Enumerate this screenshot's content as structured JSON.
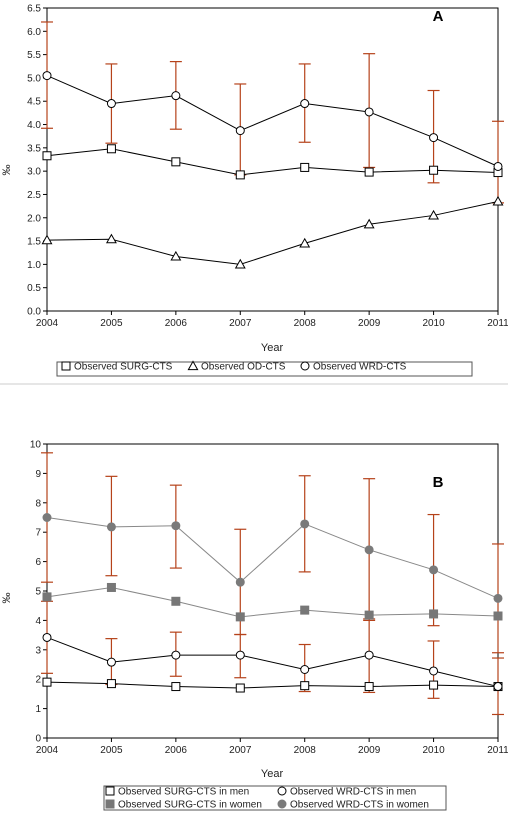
{
  "chart_data": [
    {
      "type": "line",
      "panel_label": "A",
      "xlabel": "Year",
      "ylabel": "‰",
      "x": [
        2004,
        2005,
        2006,
        2007,
        2008,
        2009,
        2010,
        2011
      ],
      "xlim": [
        2004,
        2011
      ],
      "ylim": [
        0,
        6.5
      ],
      "yticks": [
        "0.0",
        "0.5",
        "1.0",
        "1.5",
        "2.0",
        "2.5",
        "3.0",
        "3.5",
        "4.0",
        "4.5",
        "5.0",
        "5.5",
        "6.0",
        "6.5"
      ],
      "grid": false,
      "legend_position": "bottom",
      "series": [
        {
          "name": "Observed SURG-CTS",
          "marker": "square-open",
          "line_color": "#000000",
          "values": [
            3.33,
            3.48,
            3.2,
            2.92,
            3.08,
            2.98,
            3.02,
            2.97
          ]
        },
        {
          "name": "Observed OD-CTS",
          "marker": "triangle-open",
          "line_color": "#000000",
          "values": [
            1.52,
            1.54,
            1.17,
            1.0,
            1.45,
            1.86,
            2.05,
            2.35
          ]
        },
        {
          "name": "Observed WRD-CTS",
          "marker": "circle-open",
          "line_color": "#000000",
          "values": [
            5.05,
            4.45,
            4.62,
            3.87,
            4.45,
            4.27,
            3.72,
            3.1
          ],
          "error_low": [
            3.92,
            3.6,
            3.9,
            2.92,
            3.62,
            3.08,
            2.75,
            2.32
          ],
          "error_high": [
            6.2,
            5.3,
            5.35,
            4.87,
            5.3,
            5.52,
            4.73,
            4.07
          ],
          "error_color": "#b5421a"
        }
      ]
    },
    {
      "type": "line",
      "panel_label": "B",
      "xlabel": "Year",
      "ylabel": "‰",
      "x": [
        2004,
        2005,
        2006,
        2007,
        2008,
        2009,
        2010,
        2011
      ],
      "xlim": [
        2004,
        2011
      ],
      "ylim": [
        0,
        10
      ],
      "yticks": [
        "0",
        "1",
        "2",
        "3",
        "4",
        "5",
        "6",
        "7",
        "8",
        "9",
        "10"
      ],
      "grid": false,
      "legend_position": "bottom",
      "series": [
        {
          "name": "Observed SURG-CTS in men",
          "marker": "square-open",
          "line_color": "#000000",
          "values": [
            1.9,
            1.85,
            1.75,
            1.7,
            1.78,
            1.75,
            1.8,
            1.75
          ]
        },
        {
          "name": "Observed WRD-CTS in men",
          "marker": "circle-open",
          "line_color": "#000000",
          "values": [
            3.42,
            2.58,
            2.82,
            2.82,
            2.33,
            2.82,
            2.28,
            1.75
          ],
          "error_low": [
            2.2,
            1.82,
            2.1,
            2.05,
            1.58,
            1.55,
            1.35,
            0.8
          ],
          "error_high": [
            4.65,
            3.38,
            3.6,
            3.52,
            3.18,
            4.05,
            3.3,
            2.72
          ],
          "error_color": "#b5421a"
        },
        {
          "name": "Observed SURG-CTS in women",
          "marker": "square-filled",
          "line_color": "#888888",
          "values": [
            4.8,
            5.12,
            4.65,
            4.12,
            4.35,
            4.18,
            4.22,
            4.15
          ]
        },
        {
          "name": "Observed WRD-CTS in women",
          "marker": "circle-filled",
          "line_color": "#888888",
          "values": [
            7.5,
            7.18,
            7.22,
            5.3,
            7.28,
            6.4,
            5.72,
            4.75
          ],
          "error_low": [
            5.3,
            5.52,
            5.78,
            3.52,
            5.65,
            4.0,
            3.82,
            2.9
          ],
          "error_high": [
            9.7,
            8.9,
            8.6,
            7.1,
            8.92,
            8.82,
            7.6,
            6.6
          ],
          "error_color": "#b5421a"
        }
      ]
    }
  ]
}
